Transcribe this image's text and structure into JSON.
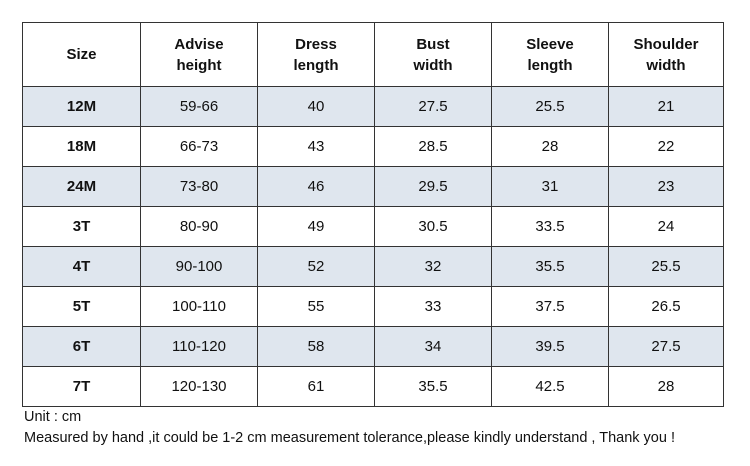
{
  "table": {
    "header": [
      "Size",
      "Advise height",
      "Dress length",
      "Bust width",
      "Sleeve length",
      "Shoulder width"
    ],
    "rows": [
      [
        "12M",
        "59-66",
        40,
        27.5,
        25.5,
        21
      ],
      [
        "18M",
        "66-73",
        43,
        28.5,
        28,
        22
      ],
      [
        "24M",
        "73-80",
        46,
        29.5,
        31,
        23
      ],
      [
        "3T",
        "80-90",
        49,
        30.5,
        33.5,
        24
      ],
      [
        "4T",
        "90-100",
        52,
        32,
        35.5,
        25.5
      ],
      [
        "5T",
        "100-110",
        55,
        33,
        37.5,
        26.5
      ],
      [
        "6T",
        "110-120",
        58,
        34,
        39.5,
        27.5
      ],
      [
        "7T",
        "120-130",
        61,
        35.5,
        42.5,
        28
      ]
    ]
  },
  "notes": [
    "Unit : cm",
    "Measured by hand ,it could be 1-2 cm measurement tolerance,please kindly understand , Thank you !"
  ]
}
